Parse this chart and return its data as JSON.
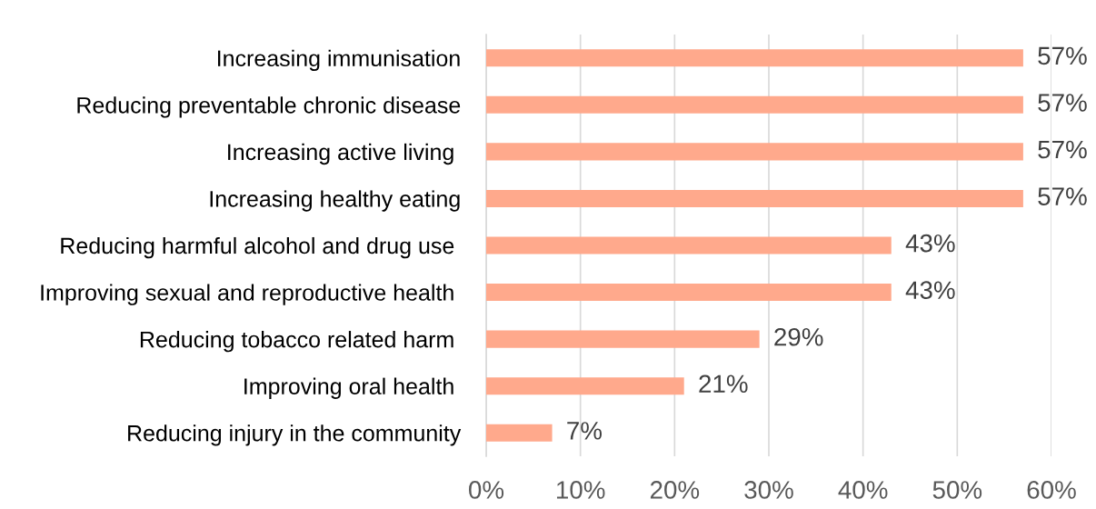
{
  "chart_data": {
    "type": "bar",
    "orientation": "horizontal",
    "categories": [
      "Increasing immunisation",
      "Reducing preventable chronic disease",
      "Increasing active living ",
      "Increasing healthy eating",
      "Reducing harmful alcohol and drug use ",
      "Improving sexual and reproductive health ",
      "Reducing tobacco related harm ",
      "Improving oral health ",
      "Reducing injury in the community"
    ],
    "values": [
      57,
      57,
      57,
      57,
      43,
      43,
      29,
      21,
      7
    ],
    "color": "#ffa98c",
    "value_labels": [
      "57%",
      "57%",
      "57%",
      "57%",
      "43%",
      "43%",
      "29%",
      "21%",
      "7%"
    ],
    "xlim": [
      0,
      60
    ],
    "xticks": [
      {
        "value": 0,
        "label": "0%"
      },
      {
        "value": 10,
        "label": "10%"
      },
      {
        "value": 20,
        "label": "20%"
      },
      {
        "value": 30,
        "label": "30%"
      },
      {
        "value": 40,
        "label": "40%"
      },
      {
        "value": 50,
        "label": "50%"
      },
      {
        "value": 60,
        "label": "60%"
      }
    ],
    "grid": "x"
  }
}
